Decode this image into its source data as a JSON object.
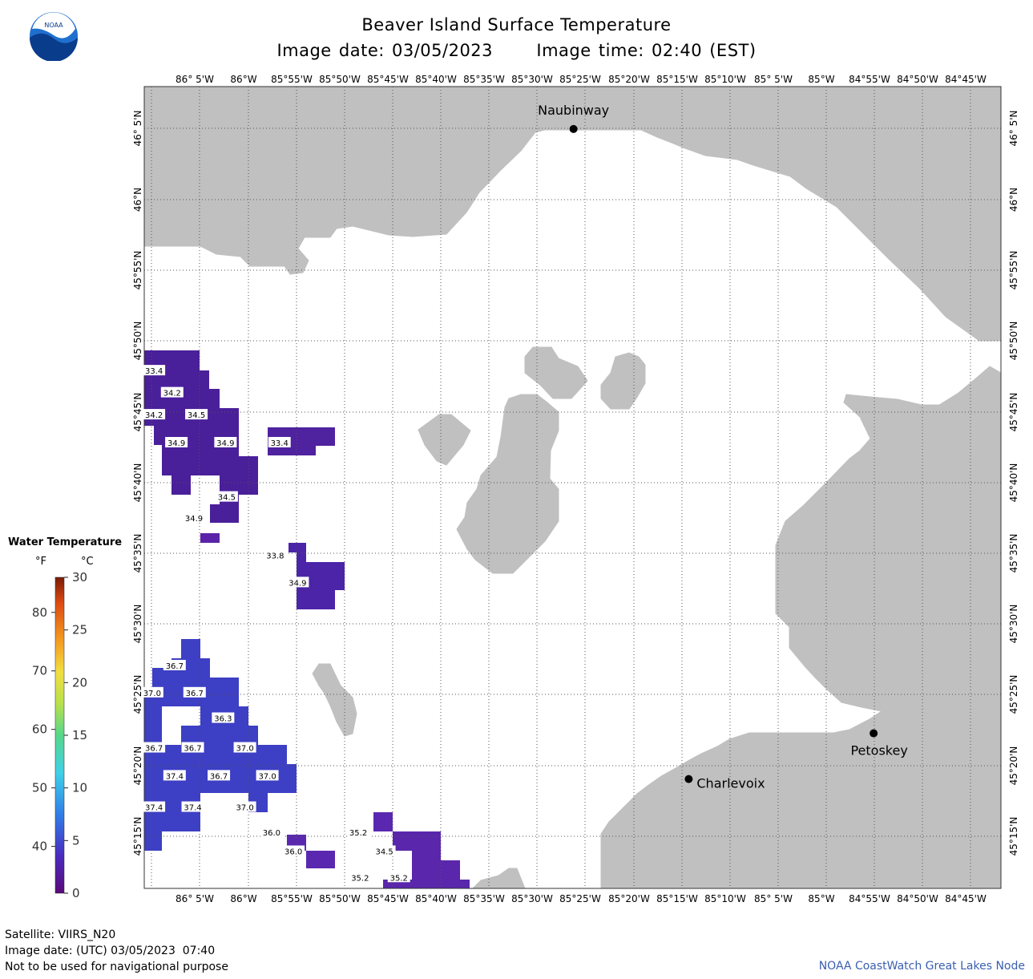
{
  "header": {
    "title": "Beaver Island Surface Temperature",
    "image_date_line": "Image date: 03/05/2023",
    "image_time_line": "Image time: 02:40 (EST)"
  },
  "logo": {
    "text": "NOAA",
    "icon": "noaa-logo-icon"
  },
  "map": {
    "top_lon_labels": [
      "86° 5'W",
      "86°W",
      "85°55'W",
      "85°50'W",
      "85°45'W",
      "85°40'W",
      "85°35'W",
      "85°30'W",
      "85°25'W",
      "85°20'W",
      "85°15'W",
      "85°10'W",
      "85° 5'W",
      "85°W",
      "84°55'W",
      "84°50'W",
      "84°45'W"
    ],
    "bottom_lon_labels": [
      "86° 5'W",
      "86°W",
      "85°55'W",
      "85°50'W",
      "85°45'W",
      "85°40'W",
      "85°35'W",
      "85°30'W",
      "85°25'W",
      "85°20'W",
      "85°15'W",
      "85°10'W",
      "85° 5'W",
      "85°W",
      "84°55'W",
      "84°50'W",
      "84°45'W"
    ],
    "lat_labels": [
      "46° 5'N",
      "46°N",
      "45°55'N",
      "45°50'N",
      "45°45'N",
      "45°40'N",
      "45°35'N",
      "45°30'N",
      "45°25'N",
      "45°20'N",
      "45°15'N"
    ],
    "cities": [
      {
        "name": "Naubinway",
        "lon": -85.45,
        "lat": 46.085
      },
      {
        "name": "Charlevoix",
        "lon": -85.26,
        "lat": 45.318
      },
      {
        "name": "Petoskey",
        "lon": -84.955,
        "lat": 45.372
      }
    ],
    "land_color": "#c0c0c0",
    "water_color": "#ffffff",
    "grid_color": "#555555"
  },
  "temperature_labels": [
    {
      "value": "33.4",
      "lon": -86.142,
      "lat": 45.8
    },
    {
      "value": "34.2",
      "lon": -86.112,
      "lat": 45.774
    },
    {
      "value": "34.2",
      "lon": -86.142,
      "lat": 45.748
    },
    {
      "value": "34.5",
      "lon": -86.072,
      "lat": 45.748
    },
    {
      "value": "34.9",
      "lon": -86.105,
      "lat": 45.715
    },
    {
      "value": "34.9",
      "lon": -86.024,
      "lat": 45.715
    },
    {
      "value": "33.4",
      "lon": -85.935,
      "lat": 45.715
    },
    {
      "value": "34.5",
      "lon": -86.022,
      "lat": 45.651
    },
    {
      "value": "34.9",
      "lon": -86.076,
      "lat": 45.626
    },
    {
      "value": "33.8",
      "lon": -85.942,
      "lat": 45.582
    },
    {
      "value": "34.9",
      "lon": -85.905,
      "lat": 45.55
    },
    {
      "value": "36.7",
      "lon": -86.108,
      "lat": 45.452
    },
    {
      "value": "37.0",
      "lon": -86.145,
      "lat": 45.42
    },
    {
      "value": "36.7",
      "lon": -86.075,
      "lat": 45.42
    },
    {
      "value": "36.3",
      "lon": -86.028,
      "lat": 45.39
    },
    {
      "value": "36.7",
      "lon": -86.142,
      "lat": 45.355
    },
    {
      "value": "36.7",
      "lon": -86.078,
      "lat": 45.355
    },
    {
      "value": "37.0",
      "lon": -85.992,
      "lat": 45.355
    },
    {
      "value": "37.4",
      "lon": -86.108,
      "lat": 45.322
    },
    {
      "value": "36.7",
      "lon": -86.035,
      "lat": 45.322
    },
    {
      "value": "37.0",
      "lon": -85.955,
      "lat": 45.322
    },
    {
      "value": "37.4",
      "lon": -86.142,
      "lat": 45.285
    },
    {
      "value": "37.4",
      "lon": -86.078,
      "lat": 45.285
    },
    {
      "value": "37.0",
      "lon": -85.992,
      "lat": 45.285
    },
    {
      "value": "36.0",
      "lon": -85.948,
      "lat": 45.255
    },
    {
      "value": "35.2",
      "lon": -85.805,
      "lat": 45.255
    },
    {
      "value": "36.0",
      "lon": -85.912,
      "lat": 45.233
    },
    {
      "value": "34.5",
      "lon": -85.762,
      "lat": 45.233
    },
    {
      "value": "35.2",
      "lon": -85.802,
      "lat": 45.202
    },
    {
      "value": "35.2",
      "lon": -85.738,
      "lat": 45.202
    }
  ],
  "legend": {
    "title": "Water Temperature",
    "unit_f": "°F",
    "unit_c": "°C",
    "f_ticks": [
      "40",
      "50",
      "60",
      "70",
      "80"
    ],
    "c_ticks": [
      "0",
      "5",
      "10",
      "15",
      "20",
      "25",
      "30"
    ],
    "c_range": [
      0,
      30
    ]
  },
  "footer": {
    "satellite": "Satellite: VIIRS_N20",
    "utc_date": "Image date: (UTC) 03/05/2023  07:40",
    "disclaimer": "Not to be used for navigational purpose",
    "credit": "NOAA CoastWatch Great Lakes Node"
  }
}
